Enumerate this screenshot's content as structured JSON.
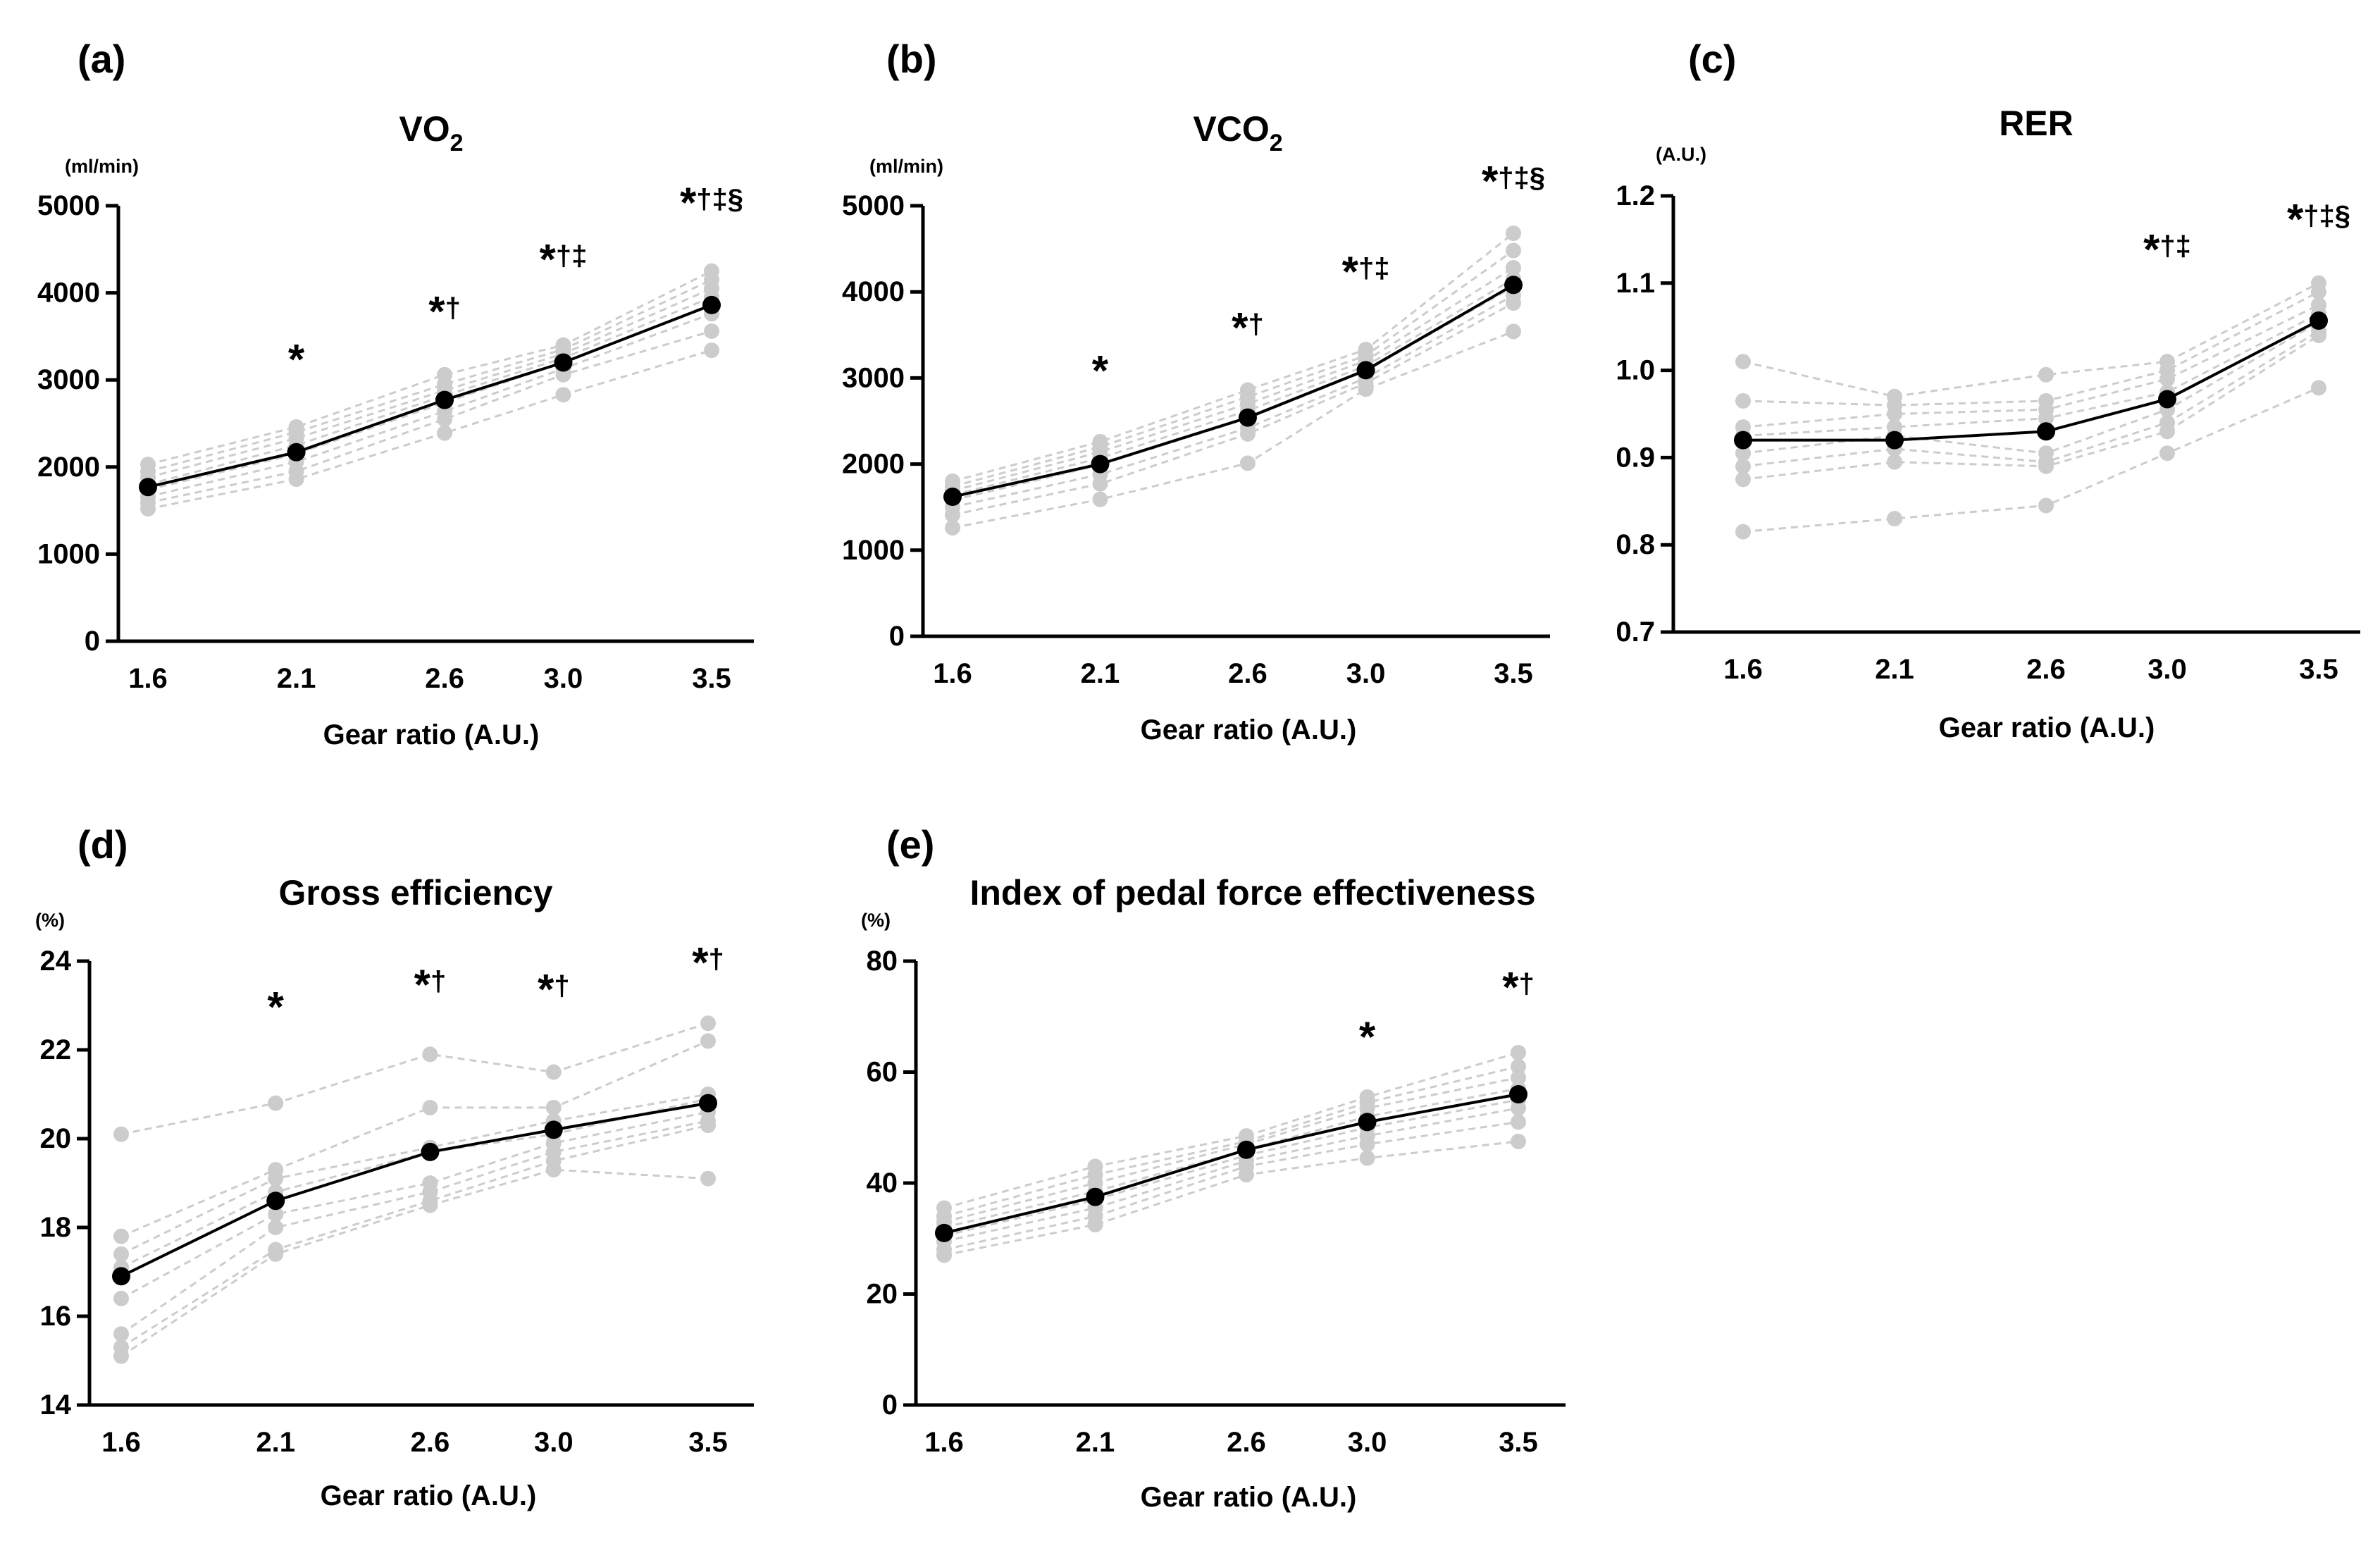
{
  "figure": {
    "background": "#ffffff"
  },
  "chart_data": [
    {
      "type": "line",
      "panel_label": "(a)",
      "title": "VO",
      "title_sub": "2",
      "unit": "(ml/min)",
      "xlabel": "Gear ratio (A.U.)",
      "categories": [
        "1.6",
        "2.1",
        "2.6",
        "3.0",
        "3.5"
      ],
      "x": [
        1.6,
        2.1,
        2.6,
        3.0,
        3.5
      ],
      "ylim": [
        0,
        5000
      ],
      "yticks": [
        0,
        1000,
        2000,
        3000,
        4000,
        5000
      ],
      "ytick_labels": [
        "0",
        "1000",
        "2000",
        "3000",
        "4000",
        "5000"
      ],
      "mean": [
        1770,
        2170,
        2770,
        3200,
        3860
      ],
      "individuals": [
        [
          2030,
          2460,
          3060,
          3400,
          4250
        ],
        [
          1950,
          2400,
          2950,
          3350,
          4150
        ],
        [
          1880,
          2330,
          2880,
          3300,
          4050
        ],
        [
          1800,
          2250,
          2820,
          3250,
          3950
        ],
        [
          1740,
          2150,
          2740,
          3200,
          3870
        ],
        [
          1660,
          2060,
          2640,
          3130,
          3760
        ],
        [
          1590,
          1950,
          2550,
          3060,
          3560
        ],
        [
          1520,
          1860,
          2390,
          2830,
          3340
        ]
      ],
      "significance": [
        "",
        "*",
        "*†",
        "*†‡",
        "*†‡§"
      ],
      "sig_y": [
        null,
        3150,
        3700,
        4300,
        4950
      ],
      "colors": {
        "mean": "#000000",
        "individual": "#cccccc"
      }
    },
    {
      "type": "line",
      "panel_label": "(b)",
      "title": "VCO",
      "title_sub": "2",
      "unit": "(ml/min)",
      "xlabel": "Gear ratio (A.U.)",
      "categories": [
        "1.6",
        "2.1",
        "2.6",
        "3.0",
        "3.5"
      ],
      "x": [
        1.6,
        2.1,
        2.6,
        3.0,
        3.5
      ],
      "ylim": [
        0,
        5000
      ],
      "yticks": [
        0,
        1000,
        2000,
        3000,
        4000,
        5000
      ],
      "ytick_labels": [
        "0",
        "1000",
        "2000",
        "3000",
        "4000",
        "5000"
      ],
      "mean": [
        1620,
        2000,
        2540,
        3090,
        4080
      ],
      "individuals": [
        [
          1800,
          2260,
          2860,
          3330,
          4680
        ],
        [
          1740,
          2200,
          2780,
          3260,
          4480
        ],
        [
          1690,
          2140,
          2700,
          3200,
          4280
        ],
        [
          1640,
          2070,
          2620,
          3140,
          4150
        ],
        [
          1580,
          1990,
          2530,
          3080,
          4060
        ],
        [
          1500,
          1880,
          2420,
          3000,
          3960
        ],
        [
          1410,
          1770,
          2350,
          2940,
          3870
        ],
        [
          1260,
          1590,
          2010,
          2870,
          3540
        ]
      ],
      "significance": [
        "",
        "*",
        "*†",
        "*†‡",
        "*†‡§"
      ],
      "sig_y": [
        null,
        3000,
        3500,
        4150,
        5200
      ],
      "colors": {
        "mean": "#000000",
        "individual": "#cccccc"
      }
    },
    {
      "type": "line",
      "panel_label": "(c)",
      "title": "RER",
      "title_sub": "",
      "unit": "(A.U.)",
      "xlabel": "Gear ratio (A.U.)",
      "categories": [
        "1.6",
        "2.1",
        "2.6",
        "3.0",
        "3.5"
      ],
      "x": [
        1.6,
        2.1,
        2.6,
        3.0,
        3.5
      ],
      "ylim": [
        0.7,
        1.2
      ],
      "yticks": [
        0.7,
        0.8,
        0.9,
        1.0,
        1.1,
        1.2
      ],
      "ytick_labels": [
        "0.7",
        "0.8",
        "0.9",
        "1.0",
        "1.1",
        "1.2"
      ],
      "mean": [
        0.92,
        0.92,
        0.93,
        0.967,
        1.057
      ],
      "individuals": [
        [
          1.01,
          0.97,
          0.995,
          1.01,
          1.1
        ],
        [
          0.965,
          0.96,
          0.965,
          1.0,
          1.09
        ],
        [
          0.935,
          0.95,
          0.955,
          0.99,
          1.075
        ],
        [
          0.925,
          0.935,
          0.945,
          0.975,
          1.065
        ],
        [
          0.905,
          0.925,
          0.905,
          0.955,
          1.055
        ],
        [
          0.89,
          0.91,
          0.895,
          0.94,
          1.045
        ],
        [
          0.875,
          0.895,
          0.89,
          0.93,
          1.04
        ],
        [
          0.815,
          0.83,
          0.845,
          0.905,
          0.98
        ]
      ],
      "significance": [
        "",
        "",
        "",
        "*†‡",
        "*†‡§"
      ],
      "sig_y": [
        null,
        null,
        null,
        1.13,
        1.165
      ],
      "colors": {
        "mean": "#000000",
        "individual": "#cccccc"
      }
    },
    {
      "type": "line",
      "panel_label": "(d)",
      "title": "Gross efficiency",
      "title_sub": "",
      "unit": "(%)",
      "xlabel": "Gear ratio (A.U.)",
      "categories": [
        "1.6",
        "2.1",
        "2.6",
        "3.0",
        "3.5"
      ],
      "x": [
        1.6,
        2.1,
        2.6,
        3.0,
        3.5
      ],
      "ylim": [
        14,
        24
      ],
      "yticks": [
        14,
        16,
        18,
        20,
        22,
        24
      ],
      "ytick_labels": [
        "14",
        "16",
        "18",
        "20",
        "22",
        "24"
      ],
      "mean": [
        16.9,
        18.6,
        19.7,
        20.2,
        20.8
      ],
      "individuals": [
        [
          20.1,
          20.8,
          21.9,
          21.5,
          22.6
        ],
        [
          17.8,
          19.3,
          20.7,
          20.7,
          22.2
        ],
        [
          17.4,
          19.1,
          19.8,
          20.4,
          21.0
        ],
        [
          17.1,
          18.8,
          19.7,
          20.1,
          20.9
        ],
        [
          16.4,
          18.3,
          19.0,
          19.9,
          20.6
        ],
        [
          15.6,
          18.0,
          18.8,
          19.7,
          20.4
        ],
        [
          15.3,
          17.5,
          18.6,
          19.5,
          20.3
        ],
        [
          15.1,
          17.4,
          18.5,
          19.3,
          19.1
        ]
      ],
      "significance": [
        "",
        "*",
        "*†",
        "*†",
        "*†"
      ],
      "sig_y": [
        null,
        22.8,
        23.3,
        23.2,
        23.8
      ],
      "colors": {
        "mean": "#000000",
        "individual": "#cccccc"
      }
    },
    {
      "type": "line",
      "panel_label": "(e)",
      "title": "Index of pedal force effectiveness",
      "title_sub": "",
      "unit": "(%)",
      "xlabel": "Gear ratio (A.U.)",
      "categories": [
        "1.6",
        "2.1",
        "2.6",
        "3.0",
        "3.5"
      ],
      "x": [
        1.6,
        2.1,
        2.6,
        3.0,
        3.5
      ],
      "ylim": [
        0,
        80
      ],
      "yticks": [
        0,
        20,
        40,
        60,
        80
      ],
      "ytick_labels": [
        "0",
        "20",
        "40",
        "60",
        "80"
      ],
      "mean": [
        31,
        37.5,
        46,
        51,
        56
      ],
      "individuals": [
        [
          35.5,
          43,
          48.5,
          55.5,
          63.5
        ],
        [
          34,
          41.5,
          47.5,
          54.5,
          61
        ],
        [
          33,
          40,
          47,
          53.5,
          59
        ],
        [
          32,
          38.5,
          46,
          52,
          57
        ],
        [
          30.5,
          37,
          45,
          50,
          55
        ],
        [
          29.5,
          35.5,
          44,
          48.5,
          53.5
        ],
        [
          28,
          34,
          43,
          47,
          51
        ],
        [
          27,
          32.5,
          41.5,
          44.5,
          47.5
        ]
      ],
      "significance": [
        "",
        "",
        "",
        "*",
        "*†"
      ],
      "sig_y": [
        null,
        null,
        null,
        65,
        74
      ],
      "colors": {
        "mean": "#000000",
        "individual": "#cccccc"
      }
    }
  ]
}
